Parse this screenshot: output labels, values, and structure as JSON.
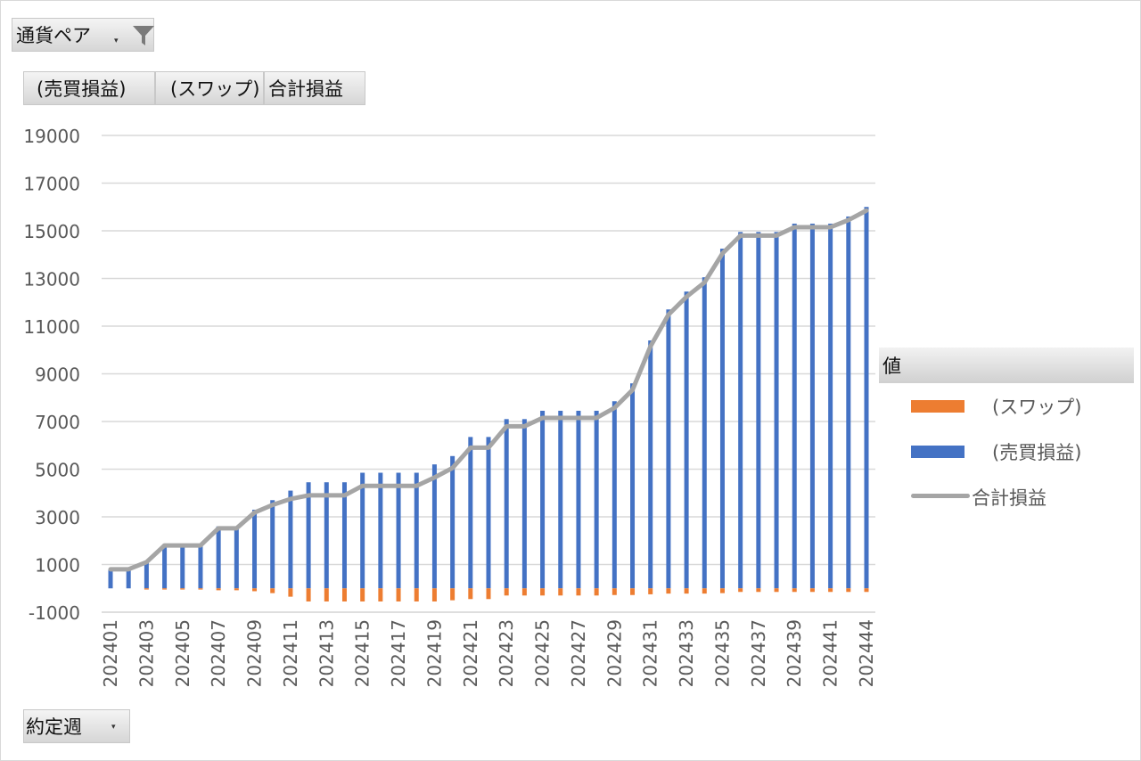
{
  "filter_field": {
    "label": "通貨ペア"
  },
  "series_fields": [
    {
      "label": "(売買損益)"
    },
    {
      "label": "(スワップ)"
    },
    {
      "label": "合計損益"
    }
  ],
  "legend": {
    "header": "値",
    "items": [
      {
        "label": "(スワップ)",
        "color": "#ED7D31",
        "kind": "bar"
      },
      {
        "label": "(売買損益)",
        "color": "#4472C4",
        "kind": "bar"
      },
      {
        "label": "合計損益",
        "color": "#A5A5A5",
        "kind": "line"
      }
    ]
  },
  "axis_field": {
    "label": "約定週"
  },
  "chart_data": {
    "type": "bar",
    "stacked": true,
    "grid": true,
    "legend_position": "right",
    "ylim": [
      -1000,
      19000
    ],
    "yticks": [
      -1000,
      1000,
      3000,
      5000,
      7000,
      9000,
      11000,
      13000,
      15000,
      17000,
      19000
    ],
    "categories": [
      "202401",
      "202402",
      "202403",
      "202404",
      "202405",
      "202406",
      "202407",
      "202408",
      "202409",
      "202410",
      "202411",
      "202412",
      "202413",
      "202414",
      "202415",
      "202416",
      "202417",
      "202418",
      "202419",
      "202420",
      "202421",
      "202422",
      "202423",
      "202424",
      "202425",
      "202426",
      "202427",
      "202428",
      "202429",
      "202430",
      "202431",
      "202432",
      "202433",
      "202434",
      "202435",
      "202436",
      "202437",
      "202438",
      "202439",
      "202440",
      "202441",
      "202442",
      "202444"
    ],
    "xtick_labels": [
      "202401",
      "202403",
      "202405",
      "202407",
      "202409",
      "202411",
      "202413",
      "202415",
      "202417",
      "202419",
      "202421",
      "202423",
      "202425",
      "202427",
      "202429",
      "202431",
      "202433",
      "202435",
      "202437",
      "202439",
      "202441",
      "202444"
    ],
    "series": [
      {
        "name": "(売買損益)",
        "type": "bar",
        "color": "#4472C4",
        "values": [
          800,
          800,
          1150,
          1850,
          1850,
          1850,
          2600,
          2600,
          3300,
          3700,
          4100,
          4450,
          4450,
          4450,
          4850,
          4850,
          4850,
          4850,
          5200,
          5550,
          6350,
          6350,
          7100,
          7100,
          7450,
          7450,
          7450,
          7450,
          7850,
          8600,
          10400,
          11700,
          12450,
          13050,
          14250,
          14950,
          14950,
          14950,
          15300,
          15300,
          15300,
          15600,
          16000
        ]
      },
      {
        "name": "(スワップ)",
        "type": "bar",
        "color": "#ED7D31",
        "values": [
          0,
          0,
          -50,
          -50,
          -50,
          -50,
          -80,
          -80,
          -120,
          -200,
          -350,
          -550,
          -550,
          -550,
          -550,
          -550,
          -550,
          -550,
          -550,
          -500,
          -450,
          -450,
          -300,
          -300,
          -300,
          -300,
          -300,
          -300,
          -280,
          -280,
          -250,
          -220,
          -220,
          -220,
          -200,
          -150,
          -150,
          -150,
          -150,
          -150,
          -150,
          -150,
          -150
        ]
      },
      {
        "name": "合計損益",
        "type": "line",
        "color": "#A5A5A5",
        "values": [
          800,
          800,
          1100,
          1800,
          1800,
          1800,
          2520,
          2520,
          3180,
          3500,
          3750,
          3900,
          3900,
          3900,
          4300,
          4300,
          4300,
          4300,
          4650,
          5050,
          5900,
          5900,
          6800,
          6800,
          7150,
          7150,
          7150,
          7150,
          7570,
          8320,
          10150,
          11480,
          12230,
          12830,
          14050,
          14800,
          14800,
          14800,
          15150,
          15150,
          15150,
          15450,
          15850
        ]
      }
    ]
  }
}
